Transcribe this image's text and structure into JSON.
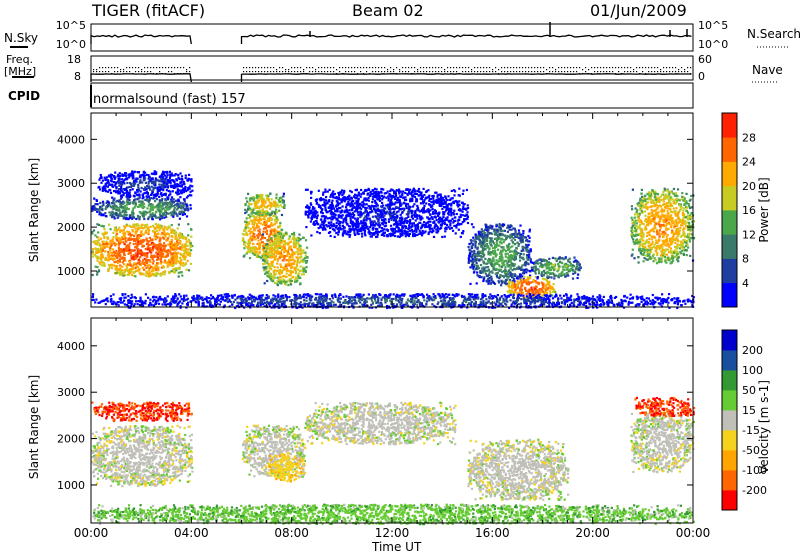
{
  "header": {
    "title": "TIGER (fitACF)",
    "beam": "Beam 02",
    "date": "01/Jun/2009"
  },
  "aux_panels": {
    "nsky_label": "N.Sky",
    "nsearch_label": "N.Search",
    "nsky_ticks": [
      "10^5",
      "10^0"
    ],
    "nsearch_ticks": [
      "10^5",
      "10^0"
    ],
    "freq_label": "Freq.",
    "freq_unit": "[MHz]",
    "freq_ticks": [
      "18",
      "8"
    ],
    "nave_label": "Nave",
    "nave_ticks": [
      "60",
      "0"
    ],
    "cpid_label": "CPID",
    "cpid_value": "normalsound (fast) 157"
  },
  "x_axis": {
    "label": "Time UT",
    "ticks": [
      "00:00",
      "04:00",
      "08:00",
      "12:00",
      "16:00",
      "20:00",
      "00:00"
    ]
  },
  "colors": {
    "power_scale": [
      "#0000ff",
      "#1e3ea0",
      "#3a7a6a",
      "#4aa84a",
      "#c8cc22",
      "#ffaa00",
      "#ff6600",
      "#ff2200"
    ],
    "velocity_scale": [
      "#ff0000",
      "#ff6600",
      "#ffa500",
      "#f5d21e",
      "#c0c0b8",
      "#66cc33",
      "#339933",
      "#1a4fa0",
      "#0000cc"
    ]
  },
  "chart_data": [
    {
      "type": "heatmap",
      "panel": "power",
      "ylabel": "Slant Range [km]",
      "xlabel": "",
      "x_unit": "hours UT",
      "xlim": [
        0,
        24
      ],
      "ylim": [
        180,
        4600
      ],
      "y_ticks": [
        1000,
        2000,
        3000,
        4000
      ],
      "data_gap_hours": [
        [
          4.0,
          6.0
        ]
      ],
      "colorbar": {
        "label": "Power [dB]",
        "ticks": [
          4,
          8,
          12,
          16,
          20,
          24,
          28
        ],
        "range": [
          0,
          32
        ]
      },
      "regions": [
        {
          "t": [
            0.0,
            4.0
          ],
          "r": [
            900,
            2100
          ],
          "value": 28
        },
        {
          "t": [
            0.0,
            4.0
          ],
          "r": [
            2200,
            2700
          ],
          "value": 14
        },
        {
          "t": [
            0.2,
            4.0
          ],
          "r": [
            2700,
            3300
          ],
          "value": 6
        },
        {
          "t": [
            6.0,
            7.6
          ],
          "r": [
            1300,
            2400
          ],
          "value": 26
        },
        {
          "t": [
            6.1,
            7.7
          ],
          "r": [
            2300,
            2800
          ],
          "value": 22
        },
        {
          "t": [
            6.8,
            8.6
          ],
          "r": [
            700,
            1900
          ],
          "value": 24
        },
        {
          "t": [
            8.5,
            15.0
          ],
          "r": [
            1800,
            2900
          ],
          "value": 4
        },
        {
          "t": [
            15.0,
            17.5
          ],
          "r": [
            700,
            2100
          ],
          "value": 14
        },
        {
          "t": [
            16.5,
            18.5
          ],
          "r": [
            400,
            900
          ],
          "value": 28
        },
        {
          "t": [
            17.5,
            19.5
          ],
          "r": [
            850,
            1350
          ],
          "value": 16
        },
        {
          "t": [
            21.5,
            24.0
          ],
          "r": [
            1200,
            2900
          ],
          "value": 24
        },
        {
          "t": [
            0.0,
            24.0
          ],
          "r": [
            180,
            500
          ],
          "value": 8
        }
      ]
    },
    {
      "type": "heatmap",
      "panel": "velocity",
      "ylabel": "Slant Range [km]",
      "xlabel": "Time UT",
      "x_unit": "hours UT",
      "xlim": [
        0,
        24
      ],
      "ylim": [
        180,
        4600
      ],
      "y_ticks": [
        1000,
        2000,
        3000,
        4000
      ],
      "data_gap_hours": [
        [
          4.0,
          6.0
        ]
      ],
      "colorbar": {
        "label": "Velocity [m s-1]",
        "ticks": [
          -200,
          -100,
          -50,
          -15,
          15,
          50,
          100,
          200
        ],
        "range": [
          -250,
          250
        ]
      },
      "regions": [
        {
          "t": [
            0.0,
            4.0
          ],
          "r": [
            1000,
            2300
          ],
          "value": 0
        },
        {
          "t": [
            0.0,
            4.0
          ],
          "r": [
            2400,
            2800
          ],
          "value": -200
        },
        {
          "t": [
            6.0,
            8.5
          ],
          "r": [
            1200,
            2300
          ],
          "value": 0
        },
        {
          "t": [
            7.0,
            8.5
          ],
          "r": [
            1100,
            1700
          ],
          "value": -60
        },
        {
          "t": [
            8.5,
            14.5
          ],
          "r": [
            1900,
            2800
          ],
          "value": 0
        },
        {
          "t": [
            15.0,
            19.0
          ],
          "r": [
            700,
            2000
          ],
          "value": 0
        },
        {
          "t": [
            21.5,
            24.0
          ],
          "r": [
            1300,
            2600
          ],
          "value": 0
        },
        {
          "t": [
            21.6,
            24.0
          ],
          "r": [
            2500,
            2900
          ],
          "value": -200
        },
        {
          "t": [
            0.0,
            24.0
          ],
          "r": [
            180,
            600
          ],
          "value": 60
        }
      ]
    }
  ]
}
